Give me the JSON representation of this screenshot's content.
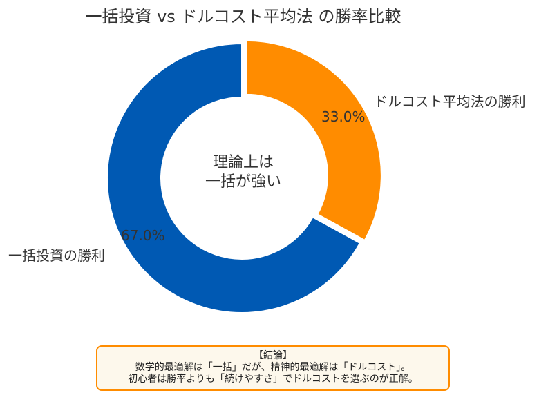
{
  "chart_data": {
    "type": "pie",
    "subtype": "donut",
    "title": "一括投資 vs ドルコスト平均法 の勝率比較",
    "categories": [
      "一括投資の勝利",
      "ドルコスト平均法の勝利"
    ],
    "values": [
      67.0,
      33.0
    ],
    "value_labels": [
      "67.0%",
      "33.0%"
    ],
    "colors": [
      "#0059b3",
      "#ff8c00"
    ],
    "exploded": [
      false,
      true
    ],
    "center_text": [
      "理論上は",
      "一括が強い"
    ],
    "legend": "none"
  },
  "title": "一括投資 vs ドルコスト平均法 の勝率比較",
  "slices": [
    {
      "label": "一括投資の勝利",
      "pct": "67.0%"
    },
    {
      "label": "ドルコスト平均法の勝利",
      "pct": "33.0%"
    }
  ],
  "center": {
    "line1": "理論上は",
    "line2": "一括が強い"
  },
  "note": {
    "heading": "【結論】",
    "line1": "数学的最適解は「一括」だが、精神的最適解は「ドルコスト」。",
    "line2": "初心者は勝率よりも「続けやすさ」でドルコストを選ぶのが正解。"
  }
}
